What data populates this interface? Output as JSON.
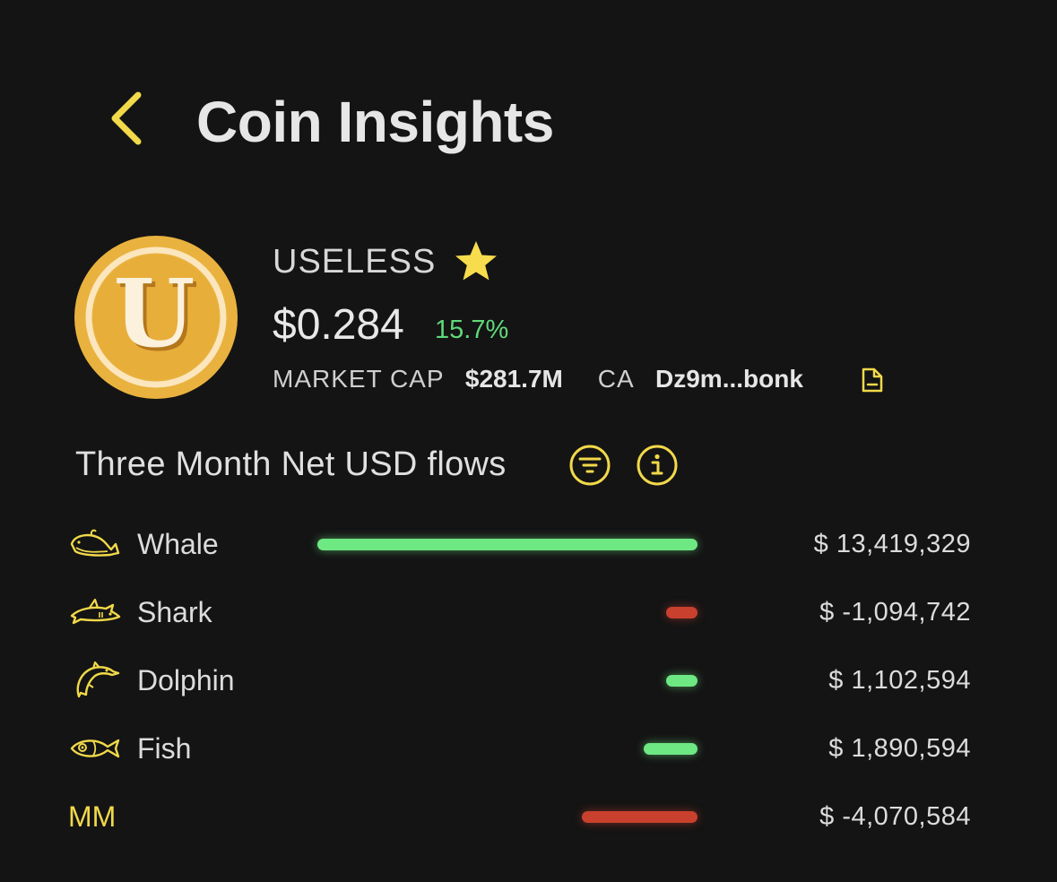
{
  "header": {
    "title": "Coin Insights"
  },
  "coin": {
    "name": "USELESS",
    "logo_letter": "U",
    "price": "$0.284",
    "change": "15.7%",
    "market_cap_label": "MARKET CAP",
    "market_cap": "$281.7M",
    "ca_label": "CA",
    "ca": "Dz9m...bonk",
    "favorite": true
  },
  "flows": {
    "title": "Three Month Net USD flows",
    "rows": [
      {
        "label": "Whale",
        "icon": "whale-icon",
        "amount": 13419329,
        "value": "$ 13,419,329"
      },
      {
        "label": "Shark",
        "icon": "shark-icon",
        "amount": -1094742,
        "value": "$ -1,094,742"
      },
      {
        "label": "Dolphin",
        "icon": "dolphin-icon",
        "amount": 1102594,
        "value": "$ 1,102,594"
      },
      {
        "label": "Fish",
        "icon": "fish-icon",
        "amount": 1890594,
        "value": "$ 1,890,594"
      },
      {
        "label": "MM",
        "icon": "",
        "amount": -4070584,
        "value": "$ -4,070,584"
      }
    ]
  },
  "colors": {
    "accent": "#f1d94a",
    "positive": "#6ee883",
    "negative": "#c9402e",
    "background": "#141414"
  }
}
